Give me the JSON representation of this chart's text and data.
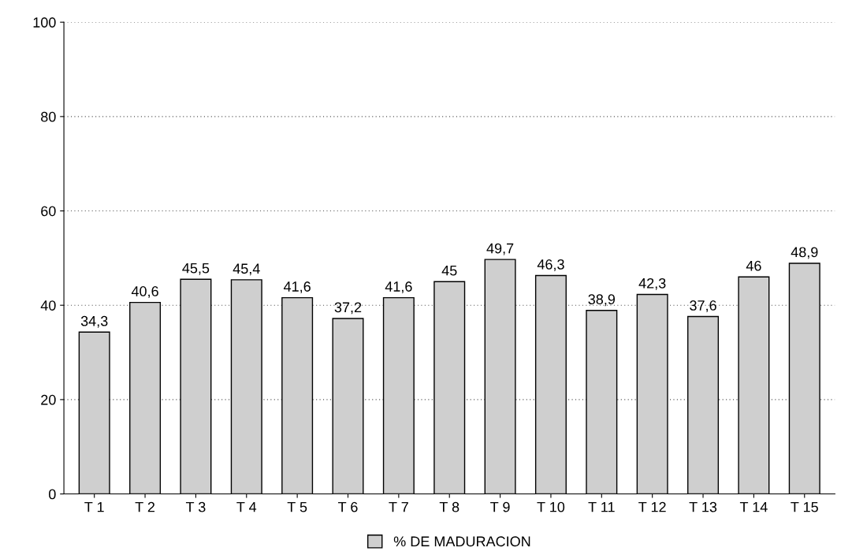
{
  "chart_data": {
    "type": "bar",
    "categories": [
      "T 1",
      "T 2",
      "T 3",
      "T 4",
      "T 5",
      "T 6",
      "T 7",
      "T 8",
      "T 9",
      "T 10",
      "T 11",
      "T 12",
      "T 13",
      "T 14",
      "T 15"
    ],
    "series": [
      {
        "name": "% DE MADURACION",
        "color": "#cfcfcf",
        "values": [
          34.3,
          40.6,
          45.5,
          45.4,
          41.6,
          37.2,
          41.6,
          45,
          49.7,
          46.3,
          38.9,
          42.3,
          37.6,
          46,
          48.9
        ],
        "value_labels": [
          "34,3",
          "40,6",
          "45,5",
          "45,4",
          "41,6",
          "37,2",
          "41,6",
          "45",
          "49,7",
          "46,3",
          "38,9",
          "42,3",
          "37,6",
          "46",
          "48,9"
        ]
      }
    ],
    "ylim": [
      0,
      100
    ],
    "yticks": [
      0,
      20,
      40,
      60,
      80,
      100
    ],
    "grid": "y",
    "legend": "bottom"
  }
}
